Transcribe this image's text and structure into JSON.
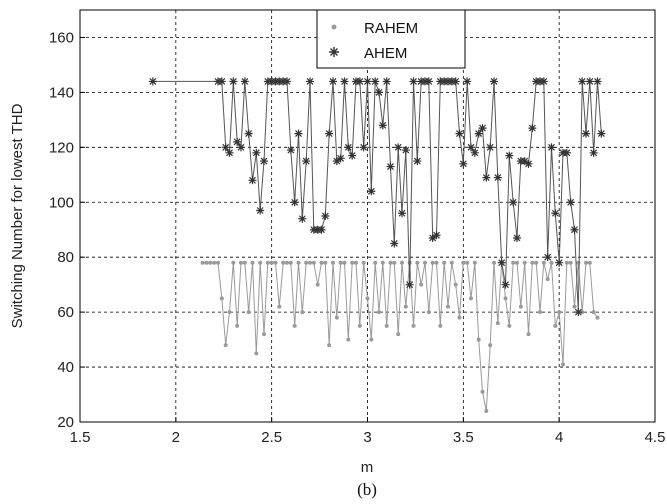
{
  "caption": "(b)",
  "chart_data": {
    "type": "line",
    "title": "",
    "xlabel": "m",
    "ylabel": "Switching Number for lowest THD",
    "xlim": [
      1.5,
      4.5
    ],
    "ylim": [
      20,
      170
    ],
    "xticks": [
      "1.5",
      "2",
      "2.5",
      "3",
      "3.5",
      "4",
      "4.5"
    ],
    "yticks": [
      "20",
      "40",
      "60",
      "80",
      "100",
      "120",
      "140",
      "160"
    ],
    "grid": true,
    "legend_placement": "top-center",
    "colors": {
      "rahem": "#9a9a9a",
      "ahem": "#555555"
    },
    "series": [
      {
        "name": "RAHEM",
        "marker": "dot",
        "x": [
          2.14,
          2.16,
          2.18,
          2.2,
          2.22,
          2.24,
          2.26,
          2.28,
          2.3,
          2.32,
          2.34,
          2.36,
          2.38,
          2.4,
          2.42,
          2.44,
          2.46,
          2.48,
          2.5,
          2.52,
          2.54,
          2.56,
          2.58,
          2.6,
          2.62,
          2.64,
          2.66,
          2.68,
          2.7,
          2.72,
          2.74,
          2.76,
          2.78,
          2.8,
          2.82,
          2.84,
          2.86,
          2.88,
          2.9,
          2.92,
          2.94,
          2.96,
          2.98,
          3.0,
          3.02,
          3.04,
          3.06,
          3.08,
          3.1,
          3.12,
          3.14,
          3.16,
          3.18,
          3.2,
          3.22,
          3.24,
          3.26,
          3.28,
          3.3,
          3.32,
          3.34,
          3.36,
          3.38,
          3.4,
          3.42,
          3.44,
          3.46,
          3.48,
          3.5,
          3.52,
          3.54,
          3.56,
          3.58,
          3.6,
          3.62,
          3.64,
          3.66,
          3.68,
          3.7,
          3.72,
          3.74,
          3.76,
          3.78,
          3.8,
          3.82,
          3.84,
          3.86,
          3.88,
          3.9,
          3.92,
          3.94,
          3.96,
          3.98,
          4.0,
          4.02,
          4.04,
          4.06,
          4.08,
          4.1,
          4.12,
          4.14,
          4.16,
          4.18,
          4.2
        ],
        "y": [
          78,
          78,
          78,
          78,
          78,
          65,
          48,
          60,
          78,
          55,
          78,
          78,
          60,
          78,
          45,
          78,
          52,
          78,
          78,
          78,
          62,
          78,
          78,
          78,
          55,
          78,
          60,
          78,
          78,
          78,
          70,
          78,
          78,
          48,
          78,
          58,
          78,
          78,
          50,
          78,
          78,
          55,
          78,
          65,
          50,
          78,
          60,
          78,
          55,
          78,
          78,
          52,
          78,
          62,
          78,
          55,
          78,
          70,
          78,
          60,
          78,
          78,
          55,
          78,
          62,
          78,
          70,
          58,
          78,
          78,
          65,
          78,
          50,
          31,
          24,
          48,
          78,
          56,
          78,
          65,
          55,
          78,
          78,
          62,
          78,
          52,
          78,
          78,
          60,
          78,
          72,
          78,
          55,
          60,
          41,
          78,
          78,
          62,
          78,
          60,
          78,
          78,
          60,
          58
        ]
      },
      {
        "name": "AHEM",
        "marker": "star",
        "x": [
          1.88,
          2.22,
          2.24,
          2.26,
          2.28,
          2.3,
          2.32,
          2.34,
          2.36,
          2.38,
          2.4,
          2.42,
          2.44,
          2.46,
          2.48,
          2.5,
          2.52,
          2.54,
          2.56,
          2.58,
          2.6,
          2.62,
          2.64,
          2.66,
          2.68,
          2.7,
          2.72,
          2.74,
          2.76,
          2.78,
          2.8,
          2.82,
          2.84,
          2.86,
          2.88,
          2.9,
          2.92,
          2.94,
          2.96,
          2.98,
          3.0,
          3.02,
          3.04,
          3.06,
          3.08,
          3.1,
          3.12,
          3.14,
          3.16,
          3.18,
          3.2,
          3.22,
          3.24,
          3.26,
          3.28,
          3.3,
          3.32,
          3.34,
          3.36,
          3.38,
          3.4,
          3.42,
          3.44,
          3.46,
          3.48,
          3.5,
          3.52,
          3.54,
          3.56,
          3.58,
          3.6,
          3.62,
          3.64,
          3.66,
          3.68,
          3.7,
          3.72,
          3.74,
          3.76,
          3.78,
          3.8,
          3.82,
          3.84,
          3.86,
          3.88,
          3.9,
          3.92,
          3.94,
          3.96,
          3.98,
          4.0,
          4.02,
          4.04,
          4.06,
          4.08,
          4.1,
          4.12,
          4.14,
          4.16,
          4.18,
          4.2,
          4.22
        ],
        "y": [
          144,
          144,
          144,
          120,
          118,
          144,
          122,
          120,
          144,
          125,
          108,
          118,
          97,
          115,
          144,
          144,
          144,
          144,
          144,
          144,
          119,
          100,
          125,
          94,
          115,
          144,
          90,
          90,
          90,
          95,
          125,
          144,
          115,
          116,
          144,
          120,
          117,
          144,
          144,
          120,
          144,
          104,
          144,
          140,
          128,
          144,
          113,
          85,
          120,
          96,
          119,
          70,
          144,
          115,
          144,
          144,
          144,
          87,
          88,
          144,
          144,
          144,
          144,
          144,
          125,
          114,
          144,
          120,
          118,
          125,
          127,
          109,
          120,
          144,
          109,
          78,
          70,
          117,
          100,
          87,
          115,
          115,
          114,
          127,
          144,
          144,
          144,
          80,
          120,
          96,
          78,
          118,
          118,
          100,
          90,
          60,
          144,
          125,
          144,
          118,
          144,
          125
        ]
      }
    ]
  }
}
